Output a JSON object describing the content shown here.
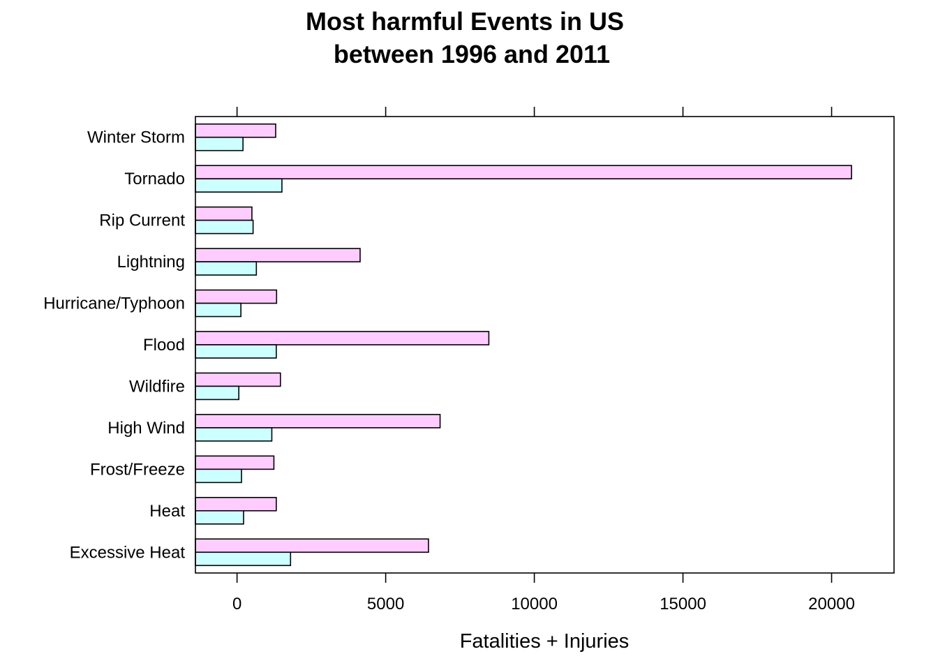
{
  "colors": {
    "injuries_fill": "#ffccff",
    "fatalities_fill": "#ccffff",
    "stroke": "#000000",
    "background": "#ffffff"
  },
  "chart_data": {
    "type": "bar",
    "orientation": "horizontal",
    "title_lines": [
      "Most harmful Events in US",
      "between 1996 and 2011"
    ],
    "xlabel": "Fatalities + Injuries",
    "ylabel": "",
    "categories": [
      "Winter Storm",
      "Tornado",
      "Rip Current",
      "Lightning",
      "Hurricane/Typhoon",
      "Flood",
      "Wildfire",
      "High Wind",
      "Frost/Freeze",
      "Heat",
      "Excessive Heat"
    ],
    "series": [
      {
        "values": [
          1300,
          20670,
          500,
          4140,
          1330,
          8470,
          1460,
          6830,
          1240,
          1320,
          6440
        ]
      },
      {
        "values": [
          200,
          1510,
          540,
          650,
          130,
          1320,
          60,
          1170,
          150,
          220,
          1800
        ]
      }
    ],
    "xlim": [
      -1400,
      22100
    ],
    "xticks": [
      0,
      5000,
      10000,
      15000,
      20000
    ],
    "xtick_labels": [
      "0",
      "5000",
      "10000",
      "15000",
      "20000"
    ],
    "grid": false,
    "legend": "none"
  }
}
